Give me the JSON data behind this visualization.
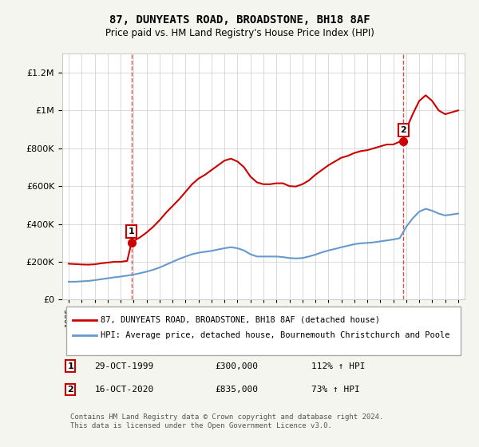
{
  "title": "87, DUNYEATS ROAD, BROADSTONE, BH18 8AF",
  "subtitle": "Price paid vs. HM Land Registry's House Price Index (HPI)",
  "red_label": "87, DUNYEATS ROAD, BROADSTONE, BH18 8AF (detached house)",
  "blue_label": "HPI: Average price, detached house, Bournemouth Christchurch and Poole",
  "marker1_label": "29-OCT-1999",
  "marker1_price": "£300,000",
  "marker1_pct": "112% ↑ HPI",
  "marker2_label": "16-OCT-2020",
  "marker2_price": "£835,000",
  "marker2_pct": "73% ↑ HPI",
  "sale1_x": 1999.83,
  "sale1_y": 300000,
  "sale2_x": 2020.79,
  "sale2_y": 835000,
  "footer": "Contains HM Land Registry data © Crown copyright and database right 2024.\nThis data is licensed under the Open Government Licence v3.0.",
  "red_color": "#cc0000",
  "blue_color": "#6699cc",
  "ylim": [
    0,
    1300000
  ],
  "xlim": [
    1994.5,
    2025.5
  ],
  "background_color": "#f5f5f0",
  "plot_bg_color": "#ffffff",
  "red_x": [
    1995.0,
    1995.5,
    1996.0,
    1996.5,
    1997.0,
    1997.5,
    1998.0,
    1998.5,
    1999.0,
    1999.5,
    1999.83,
    2000.0,
    2000.5,
    2001.0,
    2001.5,
    2002.0,
    2002.5,
    2003.0,
    2003.5,
    2004.0,
    2004.5,
    2005.0,
    2005.5,
    2006.0,
    2006.5,
    2007.0,
    2007.5,
    2008.0,
    2008.5,
    2009.0,
    2009.5,
    2010.0,
    2010.5,
    2011.0,
    2011.5,
    2012.0,
    2012.5,
    2013.0,
    2013.5,
    2014.0,
    2014.5,
    2015.0,
    2015.5,
    2016.0,
    2016.5,
    2017.0,
    2017.5,
    2018.0,
    2018.5,
    2019.0,
    2019.5,
    2020.0,
    2020.5,
    2020.79,
    2021.0,
    2021.5,
    2022.0,
    2022.5,
    2023.0,
    2023.5,
    2024.0,
    2024.5,
    2025.0
  ],
  "red_y": [
    190000,
    188000,
    186000,
    185000,
    187000,
    192000,
    196000,
    200000,
    200000,
    205000,
    300000,
    310000,
    330000,
    355000,
    385000,
    420000,
    460000,
    495000,
    530000,
    570000,
    610000,
    640000,
    660000,
    685000,
    710000,
    735000,
    745000,
    730000,
    700000,
    650000,
    620000,
    610000,
    610000,
    615000,
    615000,
    600000,
    598000,
    610000,
    630000,
    660000,
    685000,
    710000,
    730000,
    750000,
    760000,
    775000,
    785000,
    790000,
    800000,
    810000,
    820000,
    820000,
    835000,
    835000,
    900000,
    980000,
    1050000,
    1080000,
    1050000,
    1000000,
    980000,
    990000,
    1000000
  ],
  "blue_x": [
    1995.0,
    1995.5,
    1996.0,
    1996.5,
    1997.0,
    1997.5,
    1998.0,
    1998.5,
    1999.0,
    1999.5,
    2000.0,
    2000.5,
    2001.0,
    2001.5,
    2002.0,
    2002.5,
    2003.0,
    2003.5,
    2004.0,
    2004.5,
    2005.0,
    2005.5,
    2006.0,
    2006.5,
    2007.0,
    2007.5,
    2008.0,
    2008.5,
    2009.0,
    2009.5,
    2010.0,
    2010.5,
    2011.0,
    2011.5,
    2012.0,
    2012.5,
    2013.0,
    2013.5,
    2014.0,
    2014.5,
    2015.0,
    2015.5,
    2016.0,
    2016.5,
    2017.0,
    2017.5,
    2018.0,
    2018.5,
    2019.0,
    2019.5,
    2020.0,
    2020.5,
    2021.0,
    2021.5,
    2022.0,
    2022.5,
    2023.0,
    2023.5,
    2024.0,
    2024.5,
    2025.0
  ],
  "blue_y": [
    95000,
    95000,
    97000,
    99000,
    103000,
    108000,
    113000,
    118000,
    122000,
    127000,
    133000,
    140000,
    148000,
    158000,
    170000,
    185000,
    200000,
    215000,
    228000,
    240000,
    248000,
    253000,
    258000,
    265000,
    272000,
    277000,
    272000,
    260000,
    240000,
    228000,
    228000,
    228000,
    228000,
    225000,
    220000,
    218000,
    220000,
    228000,
    238000,
    250000,
    260000,
    268000,
    277000,
    285000,
    293000,
    298000,
    300000,
    303000,
    308000,
    313000,
    318000,
    325000,
    385000,
    430000,
    465000,
    480000,
    470000,
    455000,
    445000,
    450000,
    455000
  ]
}
